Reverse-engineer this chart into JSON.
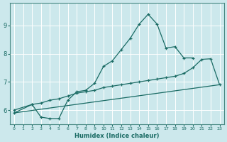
{
  "xlabel": "Humidex (Indice chaleur)",
  "background_color": "#cce8ec",
  "grid_color": "#b0d4d8",
  "line_color": "#1a6b64",
  "xlim": [
    -0.5,
    23.5
  ],
  "ylim": [
    5.5,
    9.8
  ],
  "yticks": [
    6,
    7,
    8,
    9
  ],
  "xticks": [
    0,
    1,
    2,
    3,
    4,
    5,
    6,
    7,
    8,
    9,
    10,
    11,
    12,
    13,
    14,
    15,
    16,
    17,
    18,
    19,
    20,
    21,
    22,
    23
  ],
  "curve1_x": [
    0,
    2,
    3,
    4,
    5,
    6,
    7,
    8,
    9,
    10,
    11,
    12,
    13,
    14,
    15,
    16,
    17,
    18,
    19,
    20
  ],
  "curve1_y": [
    5.9,
    6.2,
    5.75,
    5.7,
    5.7,
    6.35,
    6.65,
    6.7,
    6.95,
    7.55,
    7.75,
    8.15,
    8.55,
    9.05,
    9.4,
    9.05,
    8.2,
    8.25,
    7.85,
    7.85
  ],
  "curve2_x": [
    0,
    2,
    3,
    4,
    5,
    6,
    7,
    8,
    9,
    10,
    11,
    12,
    13,
    14,
    15,
    16,
    17,
    18,
    19,
    20,
    21,
    22,
    23
  ],
  "curve2_y": [
    6.0,
    6.2,
    6.25,
    6.35,
    6.4,
    6.5,
    6.6,
    6.65,
    6.7,
    6.8,
    6.85,
    6.9,
    6.95,
    7.0,
    7.05,
    7.1,
    7.15,
    7.2,
    7.3,
    7.5,
    7.8,
    7.82,
    6.9
  ],
  "curve3_x": [
    0,
    23
  ],
  "curve3_y": [
    5.9,
    6.9
  ]
}
